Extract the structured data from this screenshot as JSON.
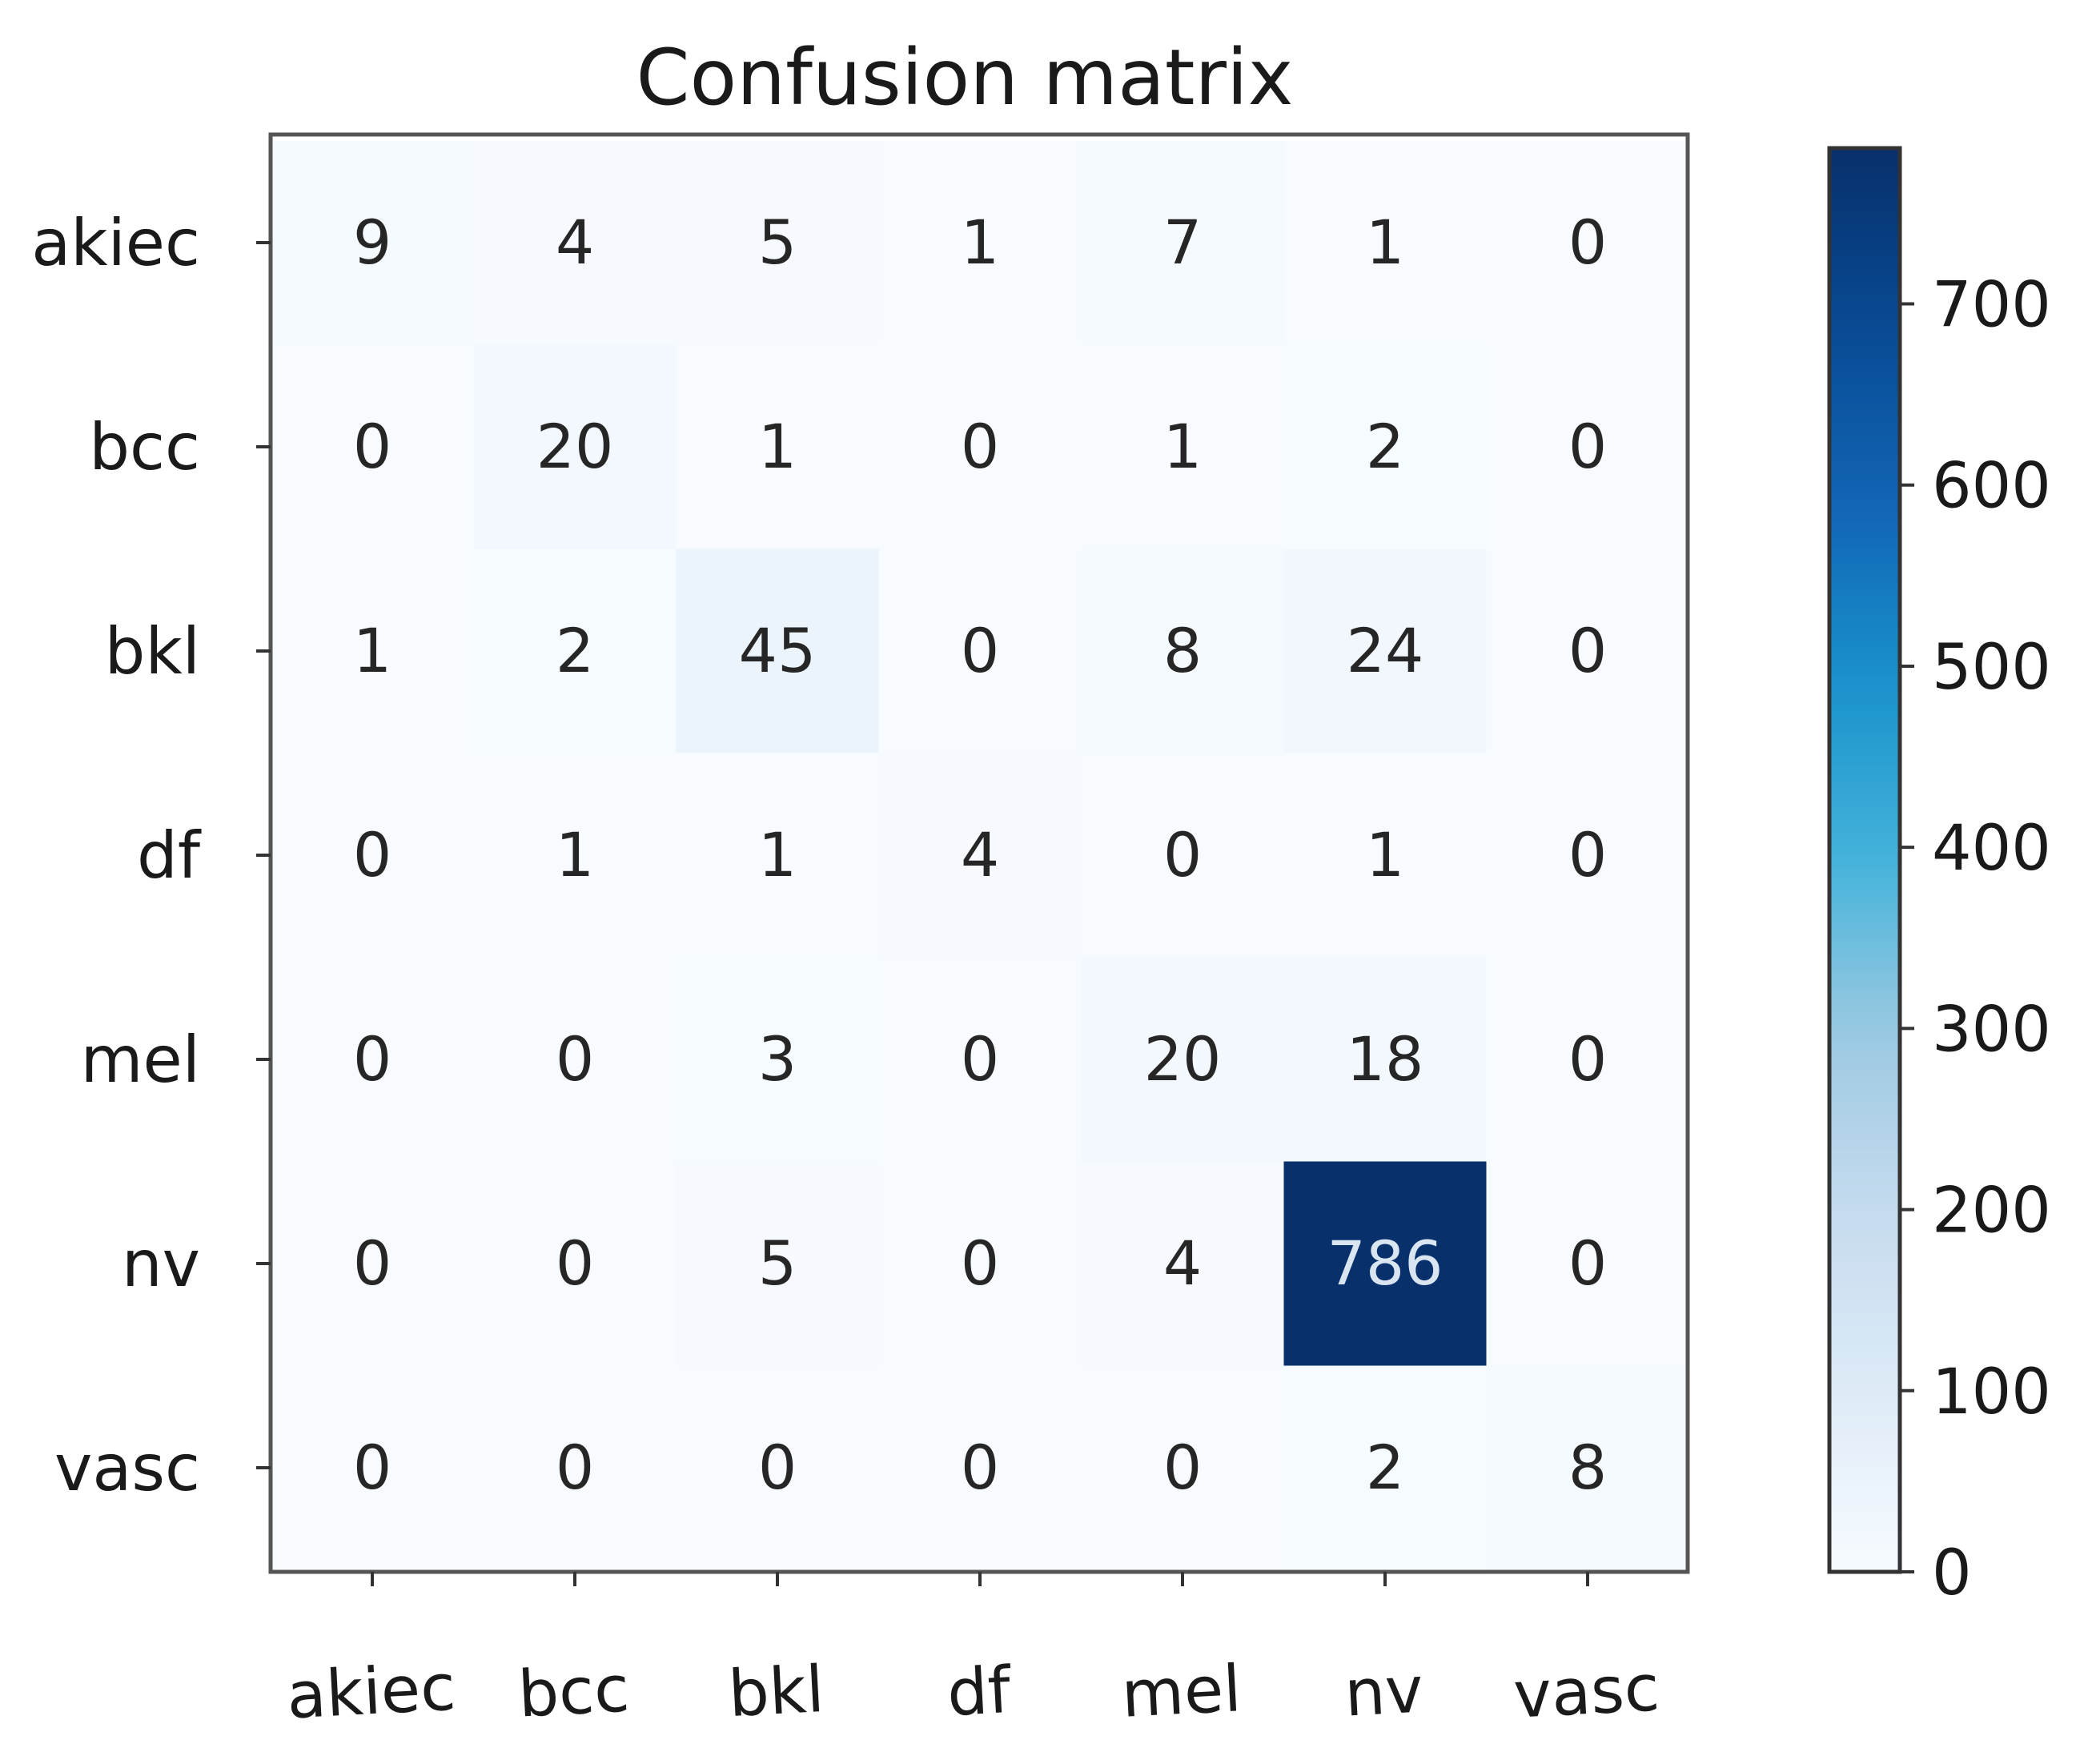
{
  "chart_data": {
    "type": "heatmap",
    "title": "Confusion matrix",
    "xlabel": "",
    "ylabel": "",
    "x_categories": [
      "akiec",
      "bcc",
      "bkl",
      "df",
      "mel",
      "nv",
      "vasc"
    ],
    "y_categories": [
      "akiec",
      "bcc",
      "bkl",
      "df",
      "mel",
      "nv",
      "vasc"
    ],
    "matrix": [
      [
        9,
        4,
        5,
        1,
        7,
        1,
        0
      ],
      [
        0,
        20,
        1,
        0,
        1,
        2,
        0
      ],
      [
        1,
        2,
        45,
        0,
        8,
        24,
        0
      ],
      [
        0,
        1,
        1,
        4,
        0,
        1,
        0
      ],
      [
        0,
        0,
        3,
        0,
        20,
        18,
        0
      ],
      [
        0,
        0,
        5,
        0,
        4,
        786,
        0
      ],
      [
        0,
        0,
        0,
        0,
        0,
        2,
        8
      ]
    ],
    "colormap": "Blues",
    "colorbar": {
      "min": 0,
      "max": 786,
      "ticks": [
        0,
        100,
        200,
        300,
        400,
        500,
        600,
        700
      ]
    },
    "colors": {
      "low": "#f7fbff",
      "high": "#08306b",
      "dark_text": "#262626",
      "light_text": "#d9e6f2"
    },
    "grid": false,
    "legend": "colorbar-right"
  }
}
